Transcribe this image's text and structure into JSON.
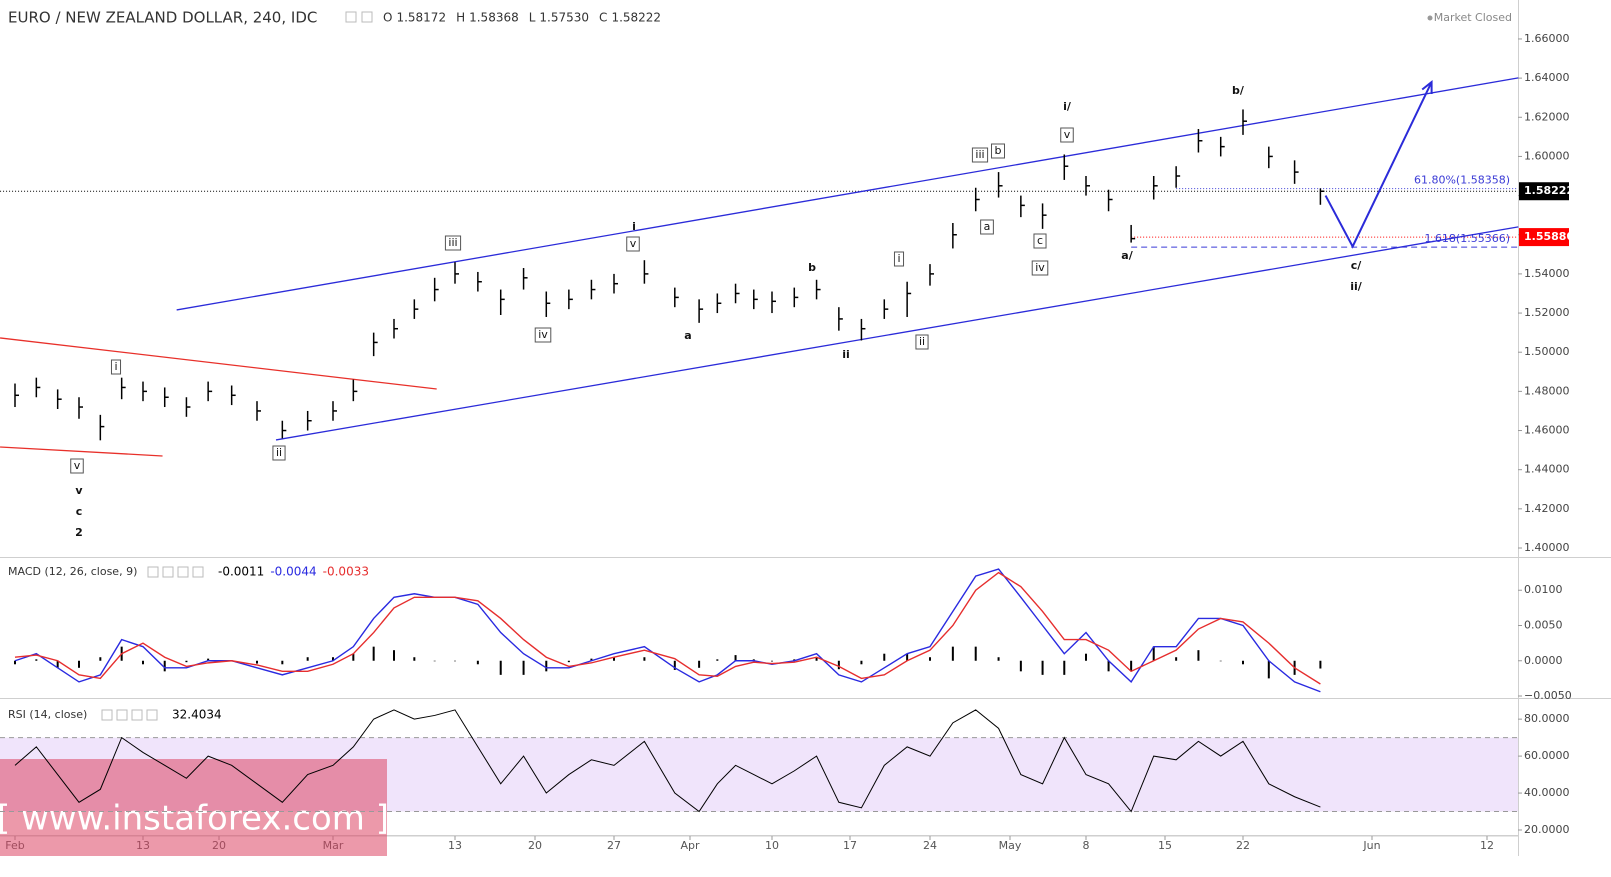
{
  "chart_data": [
    {
      "type": "ohlc",
      "title": "EURO / NEW ZEALAND DOLLAR, 240, IDC",
      "status": "Market Closed",
      "legend_values": [
        {
          "name": "O",
          "value": 1.58172
        },
        {
          "name": "H",
          "value": 1.58368
        },
        {
          "name": "L",
          "value": 1.5753,
          "value_label": "1.57530"
        },
        {
          "name": "C",
          "value": 1.58222
        }
      ],
      "color": "#000000",
      "x": [
        0,
        2,
        4,
        6,
        8,
        10,
        12,
        14,
        16,
        18,
        20,
        22,
        24,
        26,
        28,
        30,
        32,
        34,
        36,
        38,
        40,
        42,
        44,
        46,
        48,
        50,
        52,
        54,
        56,
        58,
        60,
        62,
        64,
        66,
        68,
        70,
        72,
        74,
        76,
        78,
        80,
        82,
        84,
        86,
        88,
        90,
        92,
        94,
        96,
        98,
        100,
        102,
        104,
        106,
        108,
        110,
        112,
        114,
        116
      ],
      "close": [
        1.478,
        1.482,
        1.476,
        1.472,
        1.462,
        1.482,
        1.48,
        1.477,
        1.472,
        1.48,
        1.478,
        1.47,
        1.46,
        1.465,
        1.47,
        1.48,
        1.505,
        1.512,
        1.522,
        1.532,
        1.54,
        1.536,
        1.527,
        1.538,
        1.525,
        1.527,
        1.532,
        1.535,
        1.54,
        1.528,
        1.522,
        1.525,
        1.53,
        1.527,
        1.526,
        1.528,
        1.532,
        1.517,
        1.512,
        1.522,
        1.53,
        1.54,
        1.56,
        1.578,
        1.585,
        1.575,
        1.57,
        1.595,
        1.585,
        1.578,
        1.558,
        1.585,
        1.59,
        1.608,
        1.605,
        1.618,
        1.6,
        1.592,
        1.58222
      ],
      "high": [
        1.484,
        1.487,
        1.481,
        1.477,
        1.468,
        1.487,
        1.485,
        1.482,
        1.477,
        1.485,
        1.483,
        1.475,
        1.465,
        1.47,
        1.475,
        1.486,
        1.51,
        1.517,
        1.527,
        1.538,
        1.546,
        1.541,
        1.532,
        1.543,
        1.531,
        1.532,
        1.537,
        1.54,
        1.547,
        1.533,
        1.527,
        1.53,
        1.535,
        1.532,
        1.531,
        1.533,
        1.537,
        1.523,
        1.517,
        1.527,
        1.536,
        1.545,
        1.566,
        1.584,
        1.592,
        1.58,
        1.576,
        1.601,
        1.59,
        1.583,
        1.565,
        1.59,
        1.595,
        1.614,
        1.61,
        1.624,
        1.605,
        1.598,
        1.58368
      ],
      "low": [
        1.472,
        1.477,
        1.471,
        1.466,
        1.455,
        1.476,
        1.475,
        1.472,
        1.467,
        1.475,
        1.473,
        1.465,
        1.456,
        1.46,
        1.465,
        1.475,
        1.498,
        1.507,
        1.517,
        1.526,
        1.535,
        1.531,
        1.519,
        1.532,
        1.518,
        1.522,
        1.527,
        1.53,
        1.535,
        1.523,
        1.515,
        1.52,
        1.525,
        1.522,
        1.52,
        1.523,
        1.527,
        1.511,
        1.506,
        1.517,
        1.518,
        1.534,
        1.553,
        1.572,
        1.579,
        1.569,
        1.563,
        1.588,
        1.58,
        1.572,
        1.556,
        1.578,
        1.584,
        1.602,
        1.6,
        1.611,
        1.594,
        1.586,
        1.5753
      ],
      "xlim": [
        -1.4,
        134
      ],
      "xticks": [
        {
          "value": 0,
          "label": "Feb"
        },
        {
          "value": 12,
          "label": "13"
        },
        {
          "value": 19,
          "label": "20"
        },
        {
          "value": 28,
          "label": "Mar"
        },
        {
          "value": 40,
          "label": "13"
        },
        {
          "value": 47,
          "label": "20"
        },
        {
          "value": 54,
          "label": "27"
        },
        {
          "value": 59,
          "label": "Apr"
        },
        {
          "value": 68,
          "label": "10"
        },
        {
          "value": 75,
          "label": "17"
        },
        {
          "value": 82,
          "label": "24"
        },
        {
          "value": 89,
          "label": "May"
        },
        {
          "value": 96,
          "label": "8"
        },
        {
          "value": 103,
          "label": "15"
        },
        {
          "value": 110,
          "label": "22"
        },
        {
          "value": 120,
          "label": "Jun"
        },
        {
          "value": 131,
          "label": "12"
        }
      ],
      "ylim": [
        1.3954,
        1.6799
      ],
      "yticks": [
        {
          "value": 1.4,
          "label": "1.40000"
        },
        {
          "value": 1.42,
          "label": "1.42000"
        },
        {
          "value": 1.44,
          "label": "1.44000"
        },
        {
          "value": 1.46,
          "label": "1.46000"
        },
        {
          "value": 1.48,
          "label": "1.48000"
        },
        {
          "value": 1.5,
          "label": "1.50000"
        },
        {
          "value": 1.52,
          "label": "1.52000"
        },
        {
          "value": 1.54,
          "label": "1.54000"
        },
        {
          "value": 1.56,
          "label": "1.56000"
        },
        {
          "value": 1.58,
          "label": "1.58000"
        },
        {
          "value": 1.6,
          "label": "1.60000"
        },
        {
          "value": 1.62,
          "label": "1.62000"
        },
        {
          "value": 1.64,
          "label": "1.64000"
        },
        {
          "value": 1.66,
          "label": "1.66000"
        }
      ],
      "trendlines": [
        {
          "color": "#2b2bd9",
          "x": [
            15.1,
            134
          ],
          "y": [
            1.5216,
            1.6401
          ]
        },
        {
          "color": "#2b2bd9",
          "x": [
            23.5,
            134
          ],
          "y": [
            1.4552,
            1.564
          ]
        },
        {
          "color": "#e8302a",
          "x": [
            -1.4,
            38.2
          ],
          "y": [
            1.5073,
            1.4812
          ]
        },
        {
          "color": "#e8302a",
          "x": [
            -1.4,
            13.8
          ],
          "y": [
            1.4516,
            1.447
          ]
        }
      ],
      "projection": {
        "color": "#2b2bd9",
        "x": [
          116.4,
          118.5,
          125.7
        ],
        "y": [
          1.58,
          1.554,
          1.638
        ]
      },
      "levels": [
        {
          "value": 1.58222,
          "label": "1.58222",
          "color": "#000000",
          "style": "dotted",
          "boxed": true
        },
        {
          "value": 1.58358,
          "label": "61.80%(1.58358)",
          "color": "#3b3bd6",
          "style": "dotted",
          "from": 104
        },
        {
          "value": 1.5588,
          "label": "1.55880",
          "color": "#ff0000",
          "style": "dotted",
          "from": 100,
          "boxed": true
        },
        {
          "value": 1.55366,
          "label": "1.618(1.55366)",
          "color": "#3b3bd6",
          "style": "dashed",
          "from": 100
        }
      ],
      "annotations": [
        {
          "text": "i",
          "boxed": true
        },
        {
          "text": "v",
          "boxed": true
        },
        {
          "text": "v",
          "boxed": false
        },
        {
          "text": "c",
          "boxed": false
        },
        {
          "text": "2",
          "boxed": false
        },
        {
          "text": "ii",
          "boxed": true
        },
        {
          "text": "iii",
          "boxed": true
        },
        {
          "text": "iv",
          "boxed": true
        },
        {
          "text": "i",
          "boxed": false
        },
        {
          "text": "v",
          "boxed": true
        },
        {
          "text": "a",
          "boxed": false
        },
        {
          "text": "b",
          "boxed": false
        },
        {
          "text": "ii",
          "boxed": false
        },
        {
          "text": "i",
          "boxed": true
        },
        {
          "text": "ii",
          "boxed": true
        },
        {
          "text": "iii",
          "boxed": true
        },
        {
          "text": "b",
          "boxed": true
        },
        {
          "text": "a",
          "boxed": true
        },
        {
          "text": "c",
          "boxed": true
        },
        {
          "text": "iv",
          "boxed": true
        },
        {
          "text": "i/",
          "boxed": false
        },
        {
          "text": "v",
          "boxed": true
        },
        {
          "text": "a/",
          "boxed": false
        },
        {
          "text": "b/",
          "boxed": false
        },
        {
          "text": "c/",
          "boxed": false
        },
        {
          "text": "ii/",
          "boxed": false
        }
      ],
      "watermark": "[ www.instaforex.com ]"
    },
    {
      "type": "macd",
      "title": "MACD (12, 26, close, 9)",
      "legend_values": [
        {
          "value": -0.0011,
          "color": "#000000"
        },
        {
          "value": -0.0044,
          "color": "#2a2ae0"
        },
        {
          "value": -0.0033,
          "color": "#e62e2e"
        }
      ],
      "x": [
        0,
        2,
        4,
        6,
        8,
        10,
        12,
        14,
        16,
        18,
        20,
        22,
        24,
        26,
        28,
        30,
        32,
        34,
        36,
        38,
        40,
        42,
        44,
        46,
        48,
        50,
        52,
        54,
        56,
        58,
        60,
        62,
        64,
        66,
        68,
        70,
        72,
        74,
        76,
        78,
        80,
        82,
        84,
        86,
        88,
        90,
        92,
        94,
        96,
        98,
        100,
        102,
        104,
        106,
        108,
        110,
        112,
        114,
        116
      ],
      "series": [
        {
          "kind": "histogram",
          "color": "#000000",
          "values": [
            -0.0005,
            0.0002,
            -0.001,
            -0.001,
            0.0005,
            0.002,
            -0.0005,
            -0.0015,
            -0.0002,
            0.0003,
            0,
            -0.0004,
            -0.0005,
            0.0005,
            0.0005,
            0.001,
            0.002,
            0.0015,
            0.0005,
            0,
            0,
            -0.0005,
            -0.002,
            -0.002,
            -0.0015,
            -0.0002,
            0.0003,
            0.0005,
            0.0005,
            -0.0013,
            -0.001,
            0.0002,
            0.0008,
            0.0002,
            -0.0001,
            0.0002,
            0.0005,
            -0.0012,
            -0.0005,
            0.001,
            0.001,
            0.0005,
            0.002,
            0.002,
            0.0005,
            -0.0015,
            -0.002,
            -0.002,
            0.001,
            -0.0015,
            -0.0015,
            0.002,
            0.0005,
            0.0015,
            0,
            -0.0005,
            -0.0025,
            -0.002,
            -0.0011
          ]
        },
        {
          "kind": "line",
          "color": "#2a2ae0",
          "values": [
            0,
            0.001,
            -0.001,
            -0.003,
            -0.002,
            0.003,
            0.002,
            -0.001,
            -0.001,
            0,
            0,
            -0.001,
            -0.002,
            -0.001,
            0,
            0.002,
            0.006,
            0.009,
            0.0095,
            0.009,
            0.009,
            0.008,
            0.004,
            0.001,
            -0.001,
            -0.001,
            0,
            0.001,
            0.002,
            -0.001,
            -0.003,
            -0.002,
            0,
            0,
            -0.0005,
            0,
            0.001,
            -0.002,
            -0.003,
            -0.001,
            0.001,
            0.002,
            0.007,
            0.012,
            0.013,
            0.009,
            0.005,
            0.001,
            0.004,
            0,
            -0.003,
            0.002,
            0.002,
            0.006,
            0.006,
            0.005,
            0,
            -0.003,
            -0.0044
          ]
        },
        {
          "kind": "line",
          "color": "#e62e2e",
          "values": [
            0.0005,
            0.0008,
            0,
            -0.002,
            -0.0025,
            0.001,
            0.0025,
            0.0005,
            -0.0008,
            -0.0003,
            0,
            -0.0006,
            -0.0015,
            -0.0015,
            -0.0005,
            0.001,
            0.004,
            0.0075,
            0.009,
            0.009,
            0.009,
            0.0085,
            0.006,
            0.003,
            0.0005,
            -0.0008,
            -0.0003,
            0.0005,
            0.0015,
            0.0003,
            -0.002,
            -0.0022,
            -0.0008,
            -0.0002,
            -0.0004,
            -0.0002,
            0.0005,
            -0.0008,
            -0.0025,
            -0.002,
            0,
            0.0015,
            0.005,
            0.01,
            0.0125,
            0.0105,
            0.007,
            0.003,
            0.003,
            0.0015,
            -0.0015,
            0,
            0.0015,
            0.0045,
            0.006,
            0.0055,
            0.0025,
            -0.001,
            -0.0033
          ]
        }
      ],
      "ylim": [
        -0.00514,
        0.01443
      ],
      "yticks": [
        {
          "value": -0.005,
          "label": "−0.0050"
        },
        {
          "value": 0,
          "label": "0.0000"
        },
        {
          "value": 0.005,
          "label": "0.0050"
        },
        {
          "value": 0.01,
          "label": "0.0100"
        }
      ]
    },
    {
      "type": "rsi",
      "title": "RSI (14, close)",
      "legend_values": [
        {
          "value": 32.4034,
          "color": "#000000"
        }
      ],
      "x": [
        0,
        2,
        4,
        6,
        8,
        10,
        12,
        14,
        16,
        18,
        20,
        22,
        24,
        26,
        28,
        30,
        32,
        34,
        36,
        38,
        40,
        42,
        44,
        46,
        48,
        50,
        52,
        54,
        56,
        58,
        60,
        62,
        64,
        66,
        68,
        70,
        72,
        74,
        76,
        78,
        80,
        82,
        84,
        86,
        88,
        90,
        92,
        94,
        96,
        98,
        100,
        102,
        104,
        106,
        108,
        110,
        112,
        114,
        116
      ],
      "series": [
        {
          "color": "#000000",
          "values": [
            55,
            65,
            50,
            35,
            42,
            70,
            62,
            55,
            48,
            60,
            55,
            45,
            35,
            50,
            55,
            65,
            80,
            85,
            80,
            82,
            85,
            65,
            45,
            60,
            40,
            50,
            58,
            55,
            68,
            40,
            30,
            45,
            55,
            50,
            45,
            52,
            60,
            35,
            32,
            55,
            65,
            60,
            78,
            85,
            75,
            50,
            45,
            70,
            50,
            45,
            30,
            60,
            58,
            68,
            60,
            68,
            45,
            38,
            32.4034
          ]
        }
      ],
      "band": [
        30,
        70
      ],
      "band_color": "#f0e4fb",
      "ylim": [
        17.3,
        90.9
      ],
      "yticks": [
        {
          "value": 20,
          "label": "20.0000"
        },
        {
          "value": 40,
          "label": "40.0000"
        },
        {
          "value": 60,
          "label": "60.0000"
        },
        {
          "value": 80,
          "label": "80.0000"
        }
      ]
    }
  ]
}
